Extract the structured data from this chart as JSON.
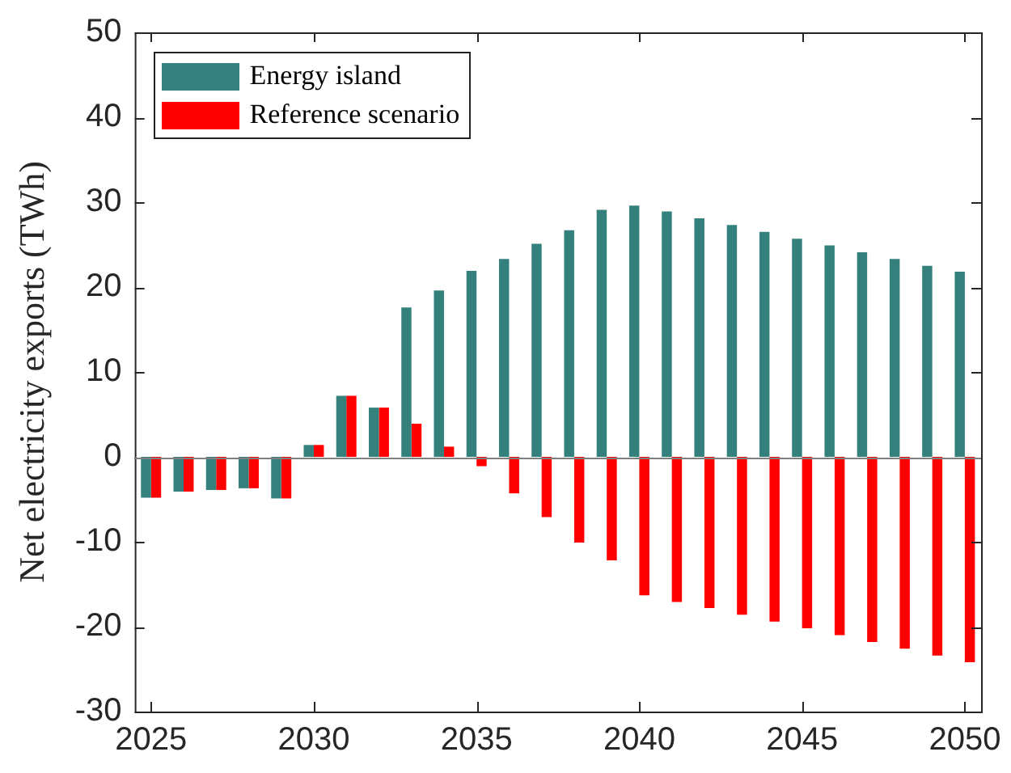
{
  "chart_data": {
    "type": "bar",
    "ylabel": "Net electricity exports (TWh)",
    "x": [
      2025,
      2026,
      2027,
      2028,
      2029,
      2030,
      2031,
      2032,
      2033,
      2034,
      2035,
      2036,
      2037,
      2038,
      2039,
      2040,
      2041,
      2042,
      2043,
      2044,
      2045,
      2046,
      2047,
      2048,
      2049,
      2050
    ],
    "series": [
      {
        "name": "Energy island",
        "color": "#34807c",
        "values": [
          -4.8,
          -4.1,
          -3.9,
          -3.7,
          -4.9,
          1.4,
          7.2,
          5.8,
          17.6,
          19.6,
          21.9,
          23.3,
          25.1,
          26.7,
          29.1,
          29.6,
          28.9,
          28.1,
          27.3,
          26.5,
          25.7,
          24.9,
          24.1,
          23.3,
          22.5,
          21.8
        ]
      },
      {
        "name": "Reference scenario",
        "color": "#ff0000",
        "values": [
          -4.8,
          -4.1,
          -3.9,
          -3.7,
          -4.9,
          1.4,
          7.2,
          5.8,
          3.9,
          1.2,
          -1.1,
          -4.3,
          -7.1,
          -10.1,
          -12.2,
          -16.3,
          -17.1,
          -17.8,
          -18.6,
          -19.4,
          -20.2,
          -21.0,
          -21.8,
          -22.6,
          -23.4,
          -24.2
        ]
      }
    ],
    "xlim": [
      2024.5,
      2050.5
    ],
    "xticks": [
      2025,
      2030,
      2035,
      2040,
      2045,
      2050
    ],
    "ylim": [
      -30,
      50
    ],
    "yticks": [
      -30,
      -20,
      -10,
      0,
      10,
      20,
      30,
      40,
      50
    ],
    "ref_lines": [
      {
        "axis": "y",
        "value": 0,
        "color": "#7f7f7f"
      }
    ],
    "grid": false,
    "legend": "top left"
  }
}
